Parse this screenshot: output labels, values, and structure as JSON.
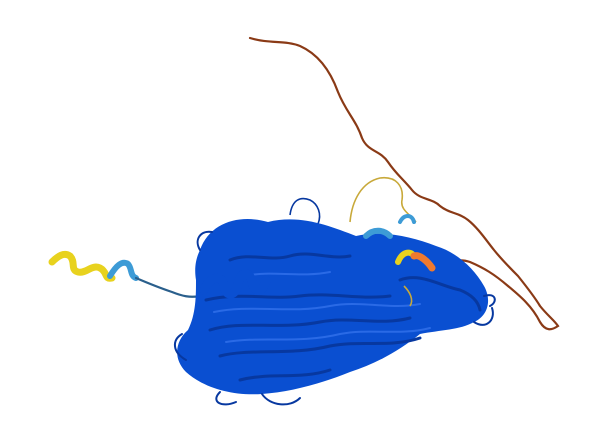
{
  "colors": {
    "background": "#ffffff",
    "very_high_confidence": "#0a4fd1",
    "very_high_confidence_dark": "#0738a0",
    "confident": "#3d9bd6",
    "low_confidence": "#e8d21e",
    "very_low_confidence": "#f07a2e",
    "disordered_tail": "#8a3a16"
  },
  "structure": {
    "type": "protein-cartoon",
    "regions": [
      {
        "name": "main-globular-domain",
        "confidence": "very_high_confidence"
      },
      {
        "name": "n-terminal-helix",
        "confidence": "low_confidence"
      },
      {
        "name": "c-terminal-coil",
        "confidence": "disordered_tail"
      }
    ]
  }
}
